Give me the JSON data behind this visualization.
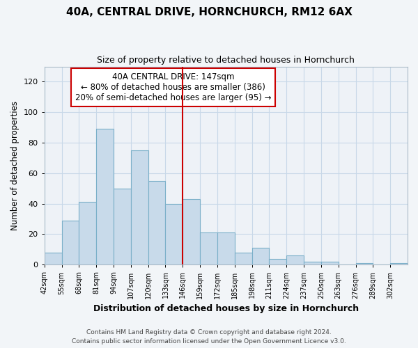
{
  "title": "40A, CENTRAL DRIVE, HORNCHURCH, RM12 6AX",
  "subtitle": "Size of property relative to detached houses in Hornchurch",
  "xlabel": "Distribution of detached houses by size in Hornchurch",
  "ylabel": "Number of detached properties",
  "bin_labels": [
    "42sqm",
    "55sqm",
    "68sqm",
    "81sqm",
    "94sqm",
    "107sqm",
    "120sqm",
    "133sqm",
    "146sqm",
    "159sqm",
    "172sqm",
    "185sqm",
    "198sqm",
    "211sqm",
    "224sqm",
    "237sqm",
    "250sqm",
    "263sqm",
    "276sqm",
    "289sqm",
    "302sqm"
  ],
  "bin_edges": [
    42,
    55,
    68,
    81,
    94,
    107,
    120,
    133,
    146,
    159,
    172,
    185,
    198,
    211,
    224,
    237,
    250,
    263,
    276,
    289,
    302
  ],
  "bar_heights": [
    8,
    29,
    41,
    89,
    50,
    75,
    55,
    40,
    43,
    21,
    21,
    8,
    11,
    4,
    6,
    2,
    2,
    0,
    1,
    0,
    1
  ],
  "bar_color": "#c8daea",
  "bar_edgecolor": "#7aafc8",
  "vline_x": 146,
  "vline_color": "#cc0000",
  "annotation_lines": [
    "40A CENTRAL DRIVE: 147sqm",
    "← 80% of detached houses are smaller (386)",
    "20% of semi-detached houses are larger (95) →"
  ],
  "annotation_box_edgecolor": "#cc0000",
  "ylim": [
    0,
    130
  ],
  "yticks": [
    0,
    20,
    40,
    60,
    80,
    100,
    120
  ],
  "footer1": "Contains HM Land Registry data © Crown copyright and database right 2024.",
  "footer2": "Contains public sector information licensed under the Open Government Licence v3.0.",
  "bg_color": "#f2f5f8",
  "plot_bg_color": "#eef2f7",
  "grid_color": "#c8d8e8"
}
